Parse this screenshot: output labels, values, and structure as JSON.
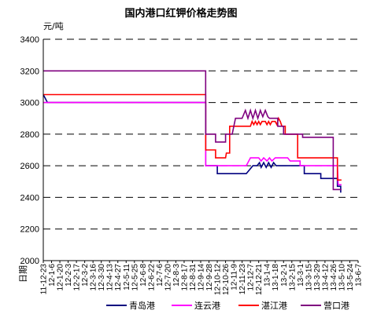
{
  "chart_data": {
    "type": "line",
    "title": "国内港口红钾价格走势图",
    "ylabel": "元/吨",
    "xlabel": "日期",
    "ylim": [
      2000,
      3400
    ],
    "yticks": [
      2000,
      2200,
      2400,
      2600,
      2800,
      3000,
      3200,
      3400
    ],
    "grid": true,
    "legend_position": "bottom",
    "x_tick_labels": [
      "11-12-23",
      "12-1-6",
      "12-1-20",
      "12-2-3",
      "12-2-17",
      "12-3-2",
      "12-3-16",
      "12-3-30",
      "12-4-13",
      "12-4-27",
      "12-5-11",
      "12-5-25",
      "12-6-8",
      "12-6-22",
      "12-7-6",
      "12-7-20",
      "12-8-3",
      "12-8-17",
      "12-8-31",
      "12-9-14",
      "12-9-28",
      "12-10-12",
      "12-10-26",
      "12-11-9",
      "12-11-23",
      "12-12-7",
      "12-12-21",
      "13-1-4",
      "13-1-18",
      "13-2-1",
      "13-2-15",
      "13-3-1",
      "13-3-15",
      "13-3-29",
      "13-4-12",
      "13-4-26",
      "13-5-10",
      "13-5-24",
      "13-6-7"
    ],
    "series": [
      {
        "name": "青岛港",
        "color": "#00007f",
        "points": [
          [
            0,
            3050
          ],
          [
            0.2,
            3030
          ],
          [
            0.5,
            3000
          ],
          [
            19.6,
            3000
          ],
          [
            19.6,
            2600
          ],
          [
            21,
            2600
          ],
          [
            21,
            2550
          ],
          [
            24.5,
            2550
          ],
          [
            25.3,
            2600
          ],
          [
            25.8,
            2600
          ],
          [
            26.1,
            2620
          ],
          [
            26.3,
            2590
          ],
          [
            26.6,
            2620
          ],
          [
            26.9,
            2590
          ],
          [
            27.2,
            2620
          ],
          [
            27.5,
            2590
          ],
          [
            27.8,
            2620
          ],
          [
            28.1,
            2600
          ],
          [
            31.5,
            2600
          ],
          [
            31.5,
            2550
          ],
          [
            33.5,
            2550
          ],
          [
            33.5,
            2520
          ],
          [
            35.5,
            2520
          ],
          [
            35.5,
            2470
          ],
          [
            35.9,
            2470
          ],
          [
            35.9,
            2430
          ]
        ]
      },
      {
        "name": "连云港",
        "color": "#ff00ff",
        "points": [
          [
            0,
            3000
          ],
          [
            19.6,
            3000
          ],
          [
            19.6,
            2600
          ],
          [
            24.5,
            2600
          ],
          [
            25,
            2650
          ],
          [
            26,
            2650
          ],
          [
            26.3,
            2630
          ],
          [
            26.6,
            2650
          ],
          [
            27,
            2630
          ],
          [
            27.3,
            2650
          ],
          [
            27.6,
            2630
          ],
          [
            28,
            2650
          ],
          [
            29.5,
            2650
          ],
          [
            29.8,
            2630
          ],
          [
            31,
            2630
          ],
          [
            31,
            2600
          ],
          [
            35.5,
            2600
          ],
          [
            35.6,
            2480
          ],
          [
            36,
            2480
          ]
        ]
      },
      {
        "name": "湛江港",
        "color": "#ff0000",
        "points": [
          [
            0,
            3050
          ],
          [
            19.6,
            3050
          ],
          [
            19.6,
            2700
          ],
          [
            20.8,
            2700
          ],
          [
            20.8,
            2650
          ],
          [
            22,
            2650
          ],
          [
            22.1,
            2680
          ],
          [
            22.5,
            2680
          ],
          [
            22.5,
            2850
          ],
          [
            25,
            2850
          ],
          [
            25.2,
            2880
          ],
          [
            25.4,
            2860
          ],
          [
            25.6,
            2880
          ],
          [
            25.8,
            2860
          ],
          [
            26,
            2880
          ],
          [
            26.2,
            2860
          ],
          [
            26.4,
            2880
          ],
          [
            26.8,
            2880
          ],
          [
            27,
            2860
          ],
          [
            27.2,
            2880
          ],
          [
            27.4,
            2860
          ],
          [
            27.6,
            2880
          ],
          [
            28,
            2880
          ],
          [
            28.2,
            2860
          ],
          [
            28.4,
            2900
          ],
          [
            28.6,
            2880
          ],
          [
            28.8,
            2850
          ],
          [
            29.2,
            2850
          ],
          [
            29.2,
            2800
          ],
          [
            30.7,
            2800
          ],
          [
            30.7,
            2650
          ],
          [
            35.5,
            2650
          ],
          [
            35.5,
            2510
          ],
          [
            36,
            2510
          ]
        ]
      },
      {
        "name": "营口港",
        "color": "#7f007f",
        "points": [
          [
            0,
            3200
          ],
          [
            19.6,
            3200
          ],
          [
            19.6,
            2800
          ],
          [
            20.8,
            2800
          ],
          [
            20.8,
            2750
          ],
          [
            22,
            2750
          ],
          [
            22,
            2800
          ],
          [
            22.8,
            2800
          ],
          [
            23,
            2850
          ],
          [
            23.2,
            2900
          ],
          [
            24,
            2900
          ],
          [
            24.4,
            2950
          ],
          [
            24.7,
            2900
          ],
          [
            25,
            2950
          ],
          [
            25.3,
            2900
          ],
          [
            25.6,
            2950
          ],
          [
            25.9,
            2900
          ],
          [
            26.2,
            2950
          ],
          [
            26.5,
            2910
          ],
          [
            26.8,
            2950
          ],
          [
            27.1,
            2910
          ],
          [
            27.3,
            2900
          ],
          [
            28.3,
            2900
          ],
          [
            28.3,
            2850
          ],
          [
            29,
            2850
          ],
          [
            29,
            2800
          ],
          [
            31.3,
            2800
          ],
          [
            31.3,
            2780
          ],
          [
            35,
            2780
          ],
          [
            35,
            2450
          ],
          [
            36,
            2450
          ]
        ]
      }
    ]
  }
}
